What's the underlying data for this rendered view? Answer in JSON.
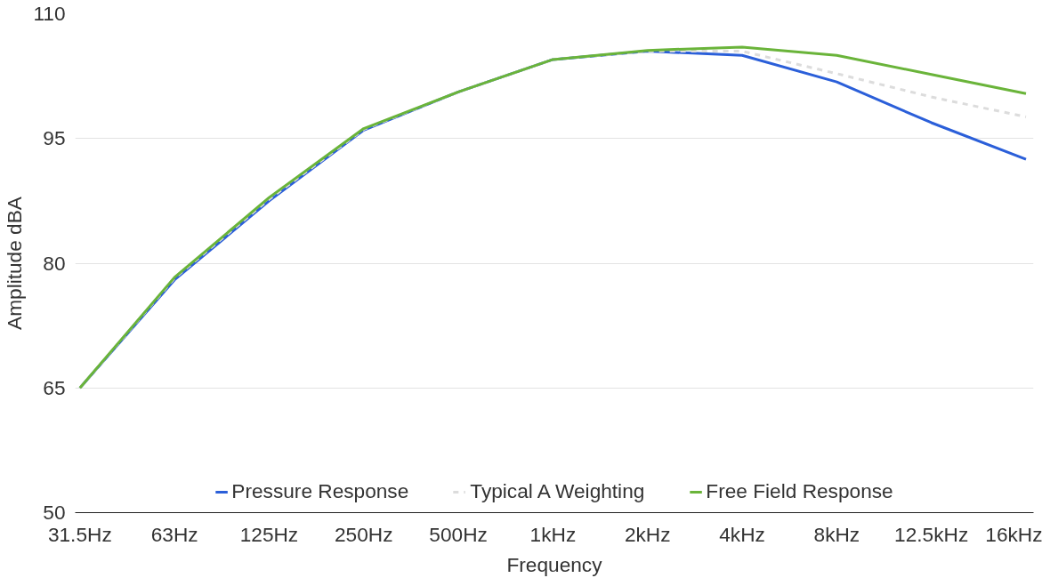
{
  "chart_data": {
    "type": "line",
    "xlabel": "Frequency",
    "ylabel": "Amplitude dBA",
    "categories": [
      "31.5Hz",
      "63Hz",
      "125Hz",
      "250Hz",
      "500Hz",
      "1kHz",
      "2kHz",
      "4kHz",
      "8kHz",
      "12.5kHz",
      "16kHz"
    ],
    "series": [
      {
        "name": "Pressure Response",
        "color": "#2b5fd9",
        "values": [
          65,
          78,
          87.5,
          96,
          100.6,
          104.5,
          105.5,
          105,
          101.8,
          96.9,
          92.5
        ]
      },
      {
        "name": "Typical A Weighting",
        "color": "#dcdcdc",
        "line_style": "dashed",
        "values": [
          65,
          78.2,
          87.7,
          96.1,
          100.6,
          104.5,
          105.5,
          105.5,
          102.8,
          100,
          97.6
        ]
      },
      {
        "name": "Free Field Response",
        "color": "#6ab43a",
        "values": [
          65,
          78.3,
          87.9,
          96.2,
          100.6,
          104.5,
          105.6,
          106,
          105,
          102.7,
          100.4
        ]
      }
    ],
    "ylim": [
      50,
      110
    ],
    "yticks": [
      50,
      65,
      80,
      95,
      110
    ],
    "grid": "y",
    "legend": "bottom",
    "marker": "none",
    "line_style": "solid"
  }
}
